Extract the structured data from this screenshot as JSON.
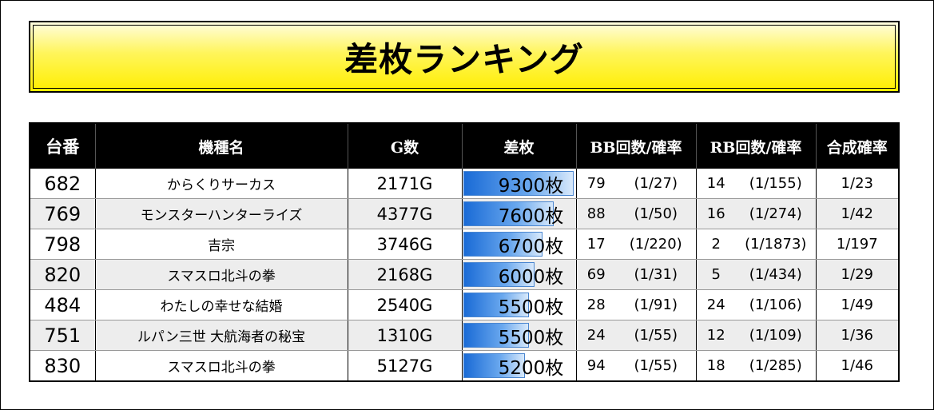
{
  "title": "差枚ランキング",
  "headers": {
    "id": "台番",
    "name": "機種名",
    "games": "G数",
    "diff": "差枚",
    "bb": "BB回数/確率",
    "rb": "RB回数/確率",
    "total": "合成確率"
  },
  "max_diff": 9300,
  "rows": [
    {
      "id": "682",
      "name": "からくりサーカス",
      "games": "2171G",
      "diff": 9300,
      "diff_label": "9300枚",
      "bb_count": "79",
      "bb_prob": "(1/27)",
      "rb_count": "14",
      "rb_prob": "(1/155)",
      "total": "1/23"
    },
    {
      "id": "769",
      "name": "モンスターハンターライズ",
      "games": "4377G",
      "diff": 7600,
      "diff_label": "7600枚",
      "bb_count": "88",
      "bb_prob": "(1/50)",
      "rb_count": "16",
      "rb_prob": "(1/274)",
      "total": "1/42"
    },
    {
      "id": "798",
      "name": "吉宗",
      "games": "3746G",
      "diff": 6700,
      "diff_label": "6700枚",
      "bb_count": "17",
      "bb_prob": "(1/220)",
      "rb_count": "2",
      "rb_prob": "(1/1873)",
      "total": "1/197"
    },
    {
      "id": "820",
      "name": "スマスロ北斗の拳",
      "games": "2168G",
      "diff": 6000,
      "diff_label": "6000枚",
      "bb_count": "69",
      "bb_prob": "(1/31)",
      "rb_count": "5",
      "rb_prob": "(1/434)",
      "total": "1/29"
    },
    {
      "id": "484",
      "name": "わたしの幸せな結婚",
      "games": "2540G",
      "diff": 5500,
      "diff_label": "5500枚",
      "bb_count": "28",
      "bb_prob": "(1/91)",
      "rb_count": "24",
      "rb_prob": "(1/106)",
      "total": "1/49"
    },
    {
      "id": "751",
      "name": "ルパン三世 大航海者の秘宝",
      "games": "1310G",
      "diff": 5500,
      "diff_label": "5500枚",
      "bb_count": "24",
      "bb_prob": "(1/55)",
      "rb_count": "12",
      "rb_prob": "(1/109)",
      "total": "1/36"
    },
    {
      "id": "830",
      "name": "スマスロ北斗の拳",
      "games": "5127G",
      "diff": 5200,
      "diff_label": "5200枚",
      "bb_count": "94",
      "bb_prob": "(1/55)",
      "rb_count": "18",
      "rb_prob": "(1/285)",
      "total": "1/46"
    }
  ]
}
